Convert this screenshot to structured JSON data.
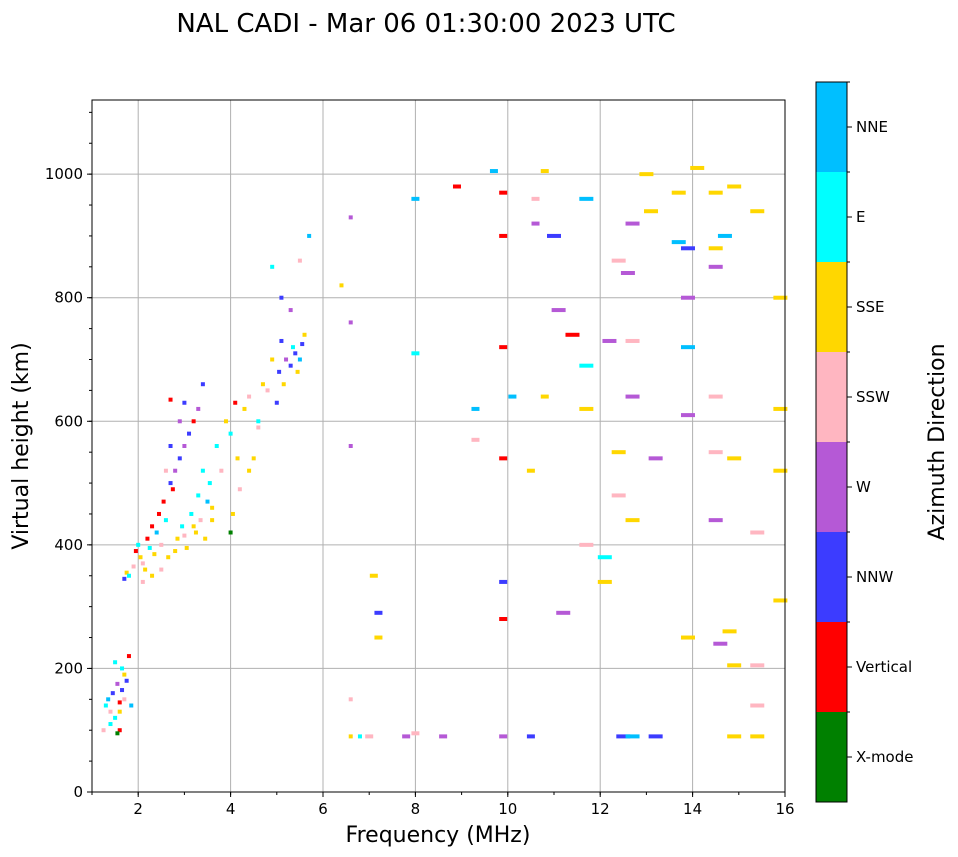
{
  "chart_data": {
    "type": "scatter",
    "title": "NAL CADI - Mar 06 01:30:00 2023 UTC",
    "xlabel": "Frequency (MHz)",
    "ylabel": "Virtual height (km)",
    "xlim": [
      1,
      16
    ],
    "ylim": [
      0,
      1120
    ],
    "xticks": [
      2,
      4,
      6,
      8,
      10,
      12,
      14,
      16
    ],
    "yticks": [
      0,
      200,
      400,
      600,
      800,
      1000
    ],
    "grid": true,
    "colorbar": {
      "label": "Azimuth Direction",
      "categories": [
        "X-mode",
        "Vertical",
        "NNW",
        "W",
        "SSW",
        "SSE",
        "E",
        "NNE"
      ],
      "colors": [
        "#008000",
        "#ff0000",
        "#3c3cff",
        "#b559d6",
        "#ffb6c1",
        "#ffd700",
        "#00ffff",
        "#00bfff"
      ]
    },
    "points": [
      [
        1.3,
        140,
        6
      ],
      [
        1.35,
        150,
        7
      ],
      [
        1.4,
        130,
        4
      ],
      [
        1.45,
        160,
        2
      ],
      [
        1.5,
        120,
        6
      ],
      [
        1.55,
        175,
        3
      ],
      [
        1.6,
        145,
        1
      ],
      [
        1.6,
        100,
        1
      ],
      [
        1.65,
        165,
        2
      ],
      [
        1.7,
        150,
        4
      ],
      [
        1.7,
        190,
        5
      ],
      [
        1.75,
        180,
        2
      ],
      [
        1.8,
        220,
        1
      ],
      [
        1.5,
        210,
        6
      ],
      [
        1.55,
        95,
        0
      ],
      [
        1.4,
        110,
        6
      ],
      [
        1.25,
        100,
        4
      ],
      [
        1.6,
        130,
        5
      ],
      [
        1.85,
        140,
        7
      ],
      [
        1.65,
        200,
        6
      ],
      [
        1.7,
        345,
        2
      ],
      [
        1.75,
        355,
        5
      ],
      [
        1.8,
        350,
        6
      ],
      [
        1.9,
        365,
        4
      ],
      [
        1.95,
        390,
        1
      ],
      [
        2.0,
        400,
        6
      ],
      [
        2.05,
        380,
        5
      ],
      [
        2.1,
        370,
        4
      ],
      [
        2.15,
        360,
        5
      ],
      [
        2.2,
        410,
        1
      ],
      [
        2.25,
        395,
        6
      ],
      [
        2.3,
        430,
        1
      ],
      [
        2.35,
        385,
        5
      ],
      [
        2.4,
        420,
        7
      ],
      [
        2.45,
        450,
        1
      ],
      [
        2.5,
        400,
        4
      ],
      [
        2.55,
        470,
        1
      ],
      [
        2.6,
        440,
        6
      ],
      [
        2.65,
        380,
        5
      ],
      [
        2.7,
        500,
        2
      ],
      [
        2.75,
        490,
        1
      ],
      [
        2.8,
        520,
        3
      ],
      [
        2.85,
        410,
        5
      ],
      [
        2.9,
        540,
        2
      ],
      [
        2.95,
        430,
        6
      ],
      [
        3.0,
        560,
        3
      ],
      [
        3.05,
        395,
        5
      ],
      [
        3.1,
        580,
        2
      ],
      [
        3.15,
        450,
        6
      ],
      [
        3.2,
        600,
        1
      ],
      [
        3.25,
        420,
        5
      ],
      [
        3.3,
        480,
        6
      ],
      [
        3.35,
        440,
        4
      ],
      [
        3.4,
        520,
        6
      ],
      [
        3.45,
        410,
        5
      ],
      [
        3.5,
        470,
        7
      ],
      [
        3.55,
        500,
        6
      ],
      [
        3.6,
        440,
        5
      ],
      [
        3.7,
        560,
        6
      ],
      [
        3.8,
        520,
        4
      ],
      [
        3.9,
        600,
        5
      ],
      [
        4.0,
        420,
        0
      ],
      [
        4.0,
        580,
        6
      ],
      [
        4.05,
        450,
        5
      ],
      [
        4.1,
        630,
        1
      ],
      [
        4.15,
        540,
        5
      ],
      [
        4.2,
        490,
        4
      ],
      [
        2.6,
        520,
        4
      ],
      [
        2.7,
        560,
        2
      ],
      [
        2.9,
        600,
        3
      ],
      [
        3.0,
        630,
        2
      ],
      [
        2.7,
        635,
        1
      ],
      [
        3.4,
        660,
        2
      ],
      [
        3.3,
        620,
        3
      ],
      [
        2.3,
        350,
        5
      ],
      [
        2.5,
        360,
        4
      ],
      [
        2.8,
        390,
        5
      ],
      [
        3.0,
        415,
        4
      ],
      [
        3.2,
        430,
        5
      ],
      [
        3.6,
        460,
        5
      ],
      [
        2.1,
        340,
        4
      ],
      [
        4.3,
        620,
        5
      ],
      [
        4.4,
        640,
        4
      ],
      [
        4.5,
        540,
        5
      ],
      [
        4.6,
        600,
        6
      ],
      [
        4.7,
        660,
        5
      ],
      [
        4.8,
        650,
        4
      ],
      [
        4.9,
        700,
        5
      ],
      [
        5.0,
        630,
        2
      ],
      [
        5.05,
        680,
        2
      ],
      [
        5.1,
        730,
        2
      ],
      [
        5.15,
        660,
        5
      ],
      [
        5.2,
        700,
        3
      ],
      [
        5.3,
        690,
        2
      ],
      [
        5.35,
        720,
        6
      ],
      [
        5.4,
        710,
        2
      ],
      [
        5.45,
        680,
        5
      ],
      [
        5.5,
        700,
        7
      ],
      [
        5.55,
        725,
        2
      ],
      [
        5.6,
        740,
        5
      ],
      [
        5.1,
        800,
        2
      ],
      [
        5.3,
        780,
        3
      ],
      [
        4.9,
        850,
        6
      ],
      [
        5.5,
        860,
        4
      ],
      [
        5.7,
        900,
        7
      ],
      [
        4.6,
        590,
        4
      ],
      [
        4.4,
        520,
        5
      ],
      [
        6.4,
        820,
        5
      ],
      [
        6.6,
        930,
        3
      ],
      [
        6.6,
        760,
        3
      ],
      [
        6.6,
        560,
        3
      ],
      [
        6.6,
        150,
        4
      ],
      [
        6.6,
        90,
        5
      ],
      [
        6.8,
        90,
        6
      ],
      [
        7.0,
        90,
        4
      ],
      [
        7.1,
        350,
        5
      ],
      [
        7.2,
        290,
        2
      ],
      [
        7.2,
        250,
        5
      ],
      [
        7.8,
        90,
        3
      ],
      [
        8.0,
        95,
        4
      ],
      [
        8.0,
        960,
        7
      ],
      [
        8.0,
        710,
        6
      ],
      [
        8.6,
        90,
        3
      ],
      [
        8.9,
        980,
        1
      ],
      [
        9.3,
        620,
        7
      ],
      [
        9.3,
        570,
        4
      ],
      [
        9.7,
        1005,
        7
      ],
      [
        9.9,
        970,
        1
      ],
      [
        9.9,
        900,
        1
      ],
      [
        9.9,
        720,
        1
      ],
      [
        9.9,
        540,
        1
      ],
      [
        9.9,
        340,
        2
      ],
      [
        9.9,
        280,
        1
      ],
      [
        9.9,
        90,
        3
      ],
      [
        10.1,
        640,
        7
      ],
      [
        10.5,
        90,
        2
      ],
      [
        10.5,
        520,
        5
      ],
      [
        10.6,
        960,
        4
      ],
      [
        10.6,
        920,
        3
      ],
      [
        10.8,
        1005,
        5
      ],
      [
        10.8,
        640,
        5
      ],
      [
        11.0,
        900,
        2
      ],
      [
        11.1,
        780,
        3
      ],
      [
        11.2,
        290,
        3
      ],
      [
        11.4,
        740,
        1
      ],
      [
        11.7,
        960,
        7
      ],
      [
        11.7,
        690,
        6
      ],
      [
        11.7,
        620,
        5
      ],
      [
        11.7,
        400,
        4
      ],
      [
        12.1,
        380,
        6
      ],
      [
        12.1,
        340,
        5
      ],
      [
        12.2,
        730,
        3
      ],
      [
        12.4,
        860,
        4
      ],
      [
        12.4,
        550,
        5
      ],
      [
        12.4,
        480,
        4
      ],
      [
        12.5,
        90,
        2
      ],
      [
        12.6,
        840,
        3
      ],
      [
        12.7,
        920,
        3
      ],
      [
        12.7,
        730,
        4
      ],
      [
        12.7,
        640,
        3
      ],
      [
        12.7,
        440,
        5
      ],
      [
        12.7,
        90,
        7
      ],
      [
        13.0,
        1000,
        5
      ],
      [
        13.1,
        940,
        5
      ],
      [
        13.2,
        540,
        3
      ],
      [
        13.2,
        90,
        2
      ],
      [
        13.7,
        970,
        5
      ],
      [
        13.7,
        890,
        7
      ],
      [
        13.9,
        880,
        2
      ],
      [
        13.9,
        800,
        3
      ],
      [
        13.9,
        720,
        7
      ],
      [
        13.9,
        610,
        3
      ],
      [
        13.9,
        250,
        5
      ],
      [
        14.1,
        1010,
        5
      ],
      [
        14.5,
        970,
        5
      ],
      [
        14.5,
        880,
        5
      ],
      [
        14.5,
        850,
        3
      ],
      [
        14.5,
        640,
        4
      ],
      [
        14.5,
        550,
        4
      ],
      [
        14.5,
        440,
        3
      ],
      [
        14.6,
        240,
        3
      ],
      [
        14.7,
        900,
        7
      ],
      [
        14.8,
        260,
        5
      ],
      [
        14.9,
        980,
        5
      ],
      [
        14.9,
        540,
        5
      ],
      [
        14.9,
        205,
        5
      ],
      [
        14.9,
        90,
        5
      ],
      [
        15.4,
        940,
        5
      ],
      [
        15.4,
        420,
        4
      ],
      [
        15.4,
        205,
        4
      ],
      [
        15.4,
        140,
        4
      ],
      [
        15.4,
        90,
        5
      ],
      [
        15.9,
        800,
        5
      ],
      [
        15.9,
        620,
        5
      ],
      [
        15.9,
        520,
        5
      ],
      [
        15.9,
        310,
        5
      ]
    ]
  }
}
